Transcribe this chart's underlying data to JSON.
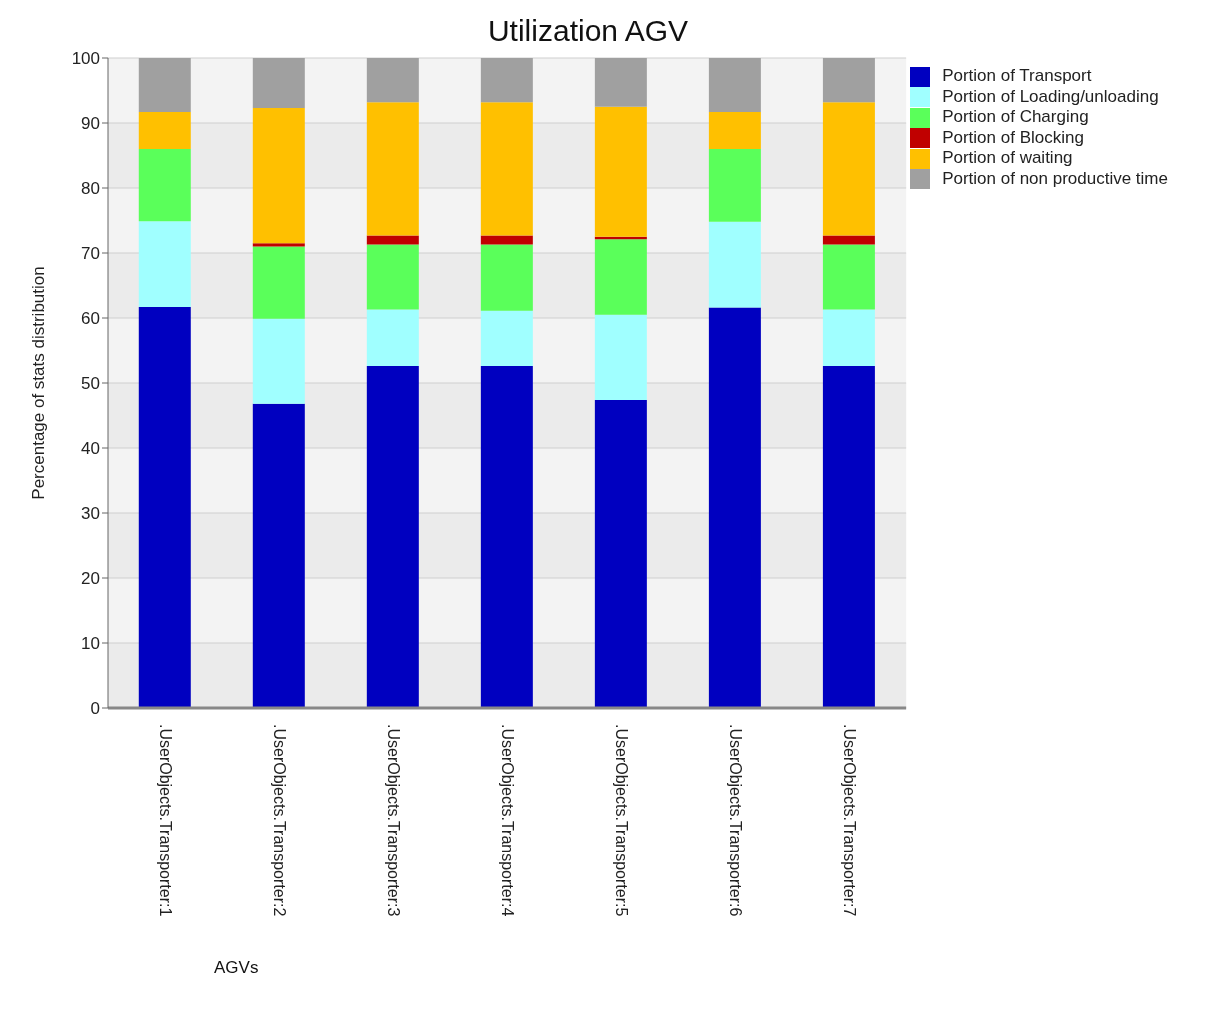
{
  "chart_data": {
    "type": "bar",
    "title": "Utilization AGV",
    "xlabel": "AGVs",
    "ylabel": "Percentage of stats distribution",
    "categories": [
      ".UserObjects.Transporter:1",
      ".UserObjects.Transporter:2",
      ".UserObjects.Transporter:3",
      ".UserObjects.Transporter:4",
      ".UserObjects.Transporter:5",
      ".UserObjects.Transporter:6",
      ".UserObjects.Transporter:7"
    ],
    "stacked": true,
    "series": [
      {
        "name": "Portion of Transport",
        "color": "#0000c0",
        "values": [
          61.7,
          46.8,
          52.6,
          52.6,
          47.4,
          61.6,
          52.6
        ]
      },
      {
        "name": "Portion of Loading/unloading",
        "color": "#a0ffff",
        "values": [
          13.2,
          13.1,
          8.7,
          8.5,
          13.1,
          13.2,
          8.7
        ]
      },
      {
        "name": "Portion of Charging",
        "color": "#5aff5a",
        "values": [
          11.1,
          11.1,
          10.0,
          10.2,
          11.6,
          11.2,
          10.0
        ]
      },
      {
        "name": "Portion of Blocking",
        "color": "#c00000",
        "values": [
          0,
          0.5,
          1.4,
          1.4,
          0.4,
          0,
          1.4
        ]
      },
      {
        "name": "Portion of waiting",
        "color": "#ffc000",
        "values": [
          5.7,
          20.8,
          20.5,
          20.5,
          20.0,
          5.7,
          20.5
        ]
      },
      {
        "name": "Portion of non productive time",
        "color": "#a0a0a0",
        "values": [
          8.3,
          7.7,
          6.8,
          6.8,
          7.5,
          8.3,
          6.8
        ]
      }
    ],
    "ylim": [
      0,
      100
    ],
    "yticks": [
      0,
      10,
      20,
      30,
      40,
      50,
      60,
      70,
      80,
      90,
      100
    ],
    "grid": "y",
    "legend": "top right"
  }
}
